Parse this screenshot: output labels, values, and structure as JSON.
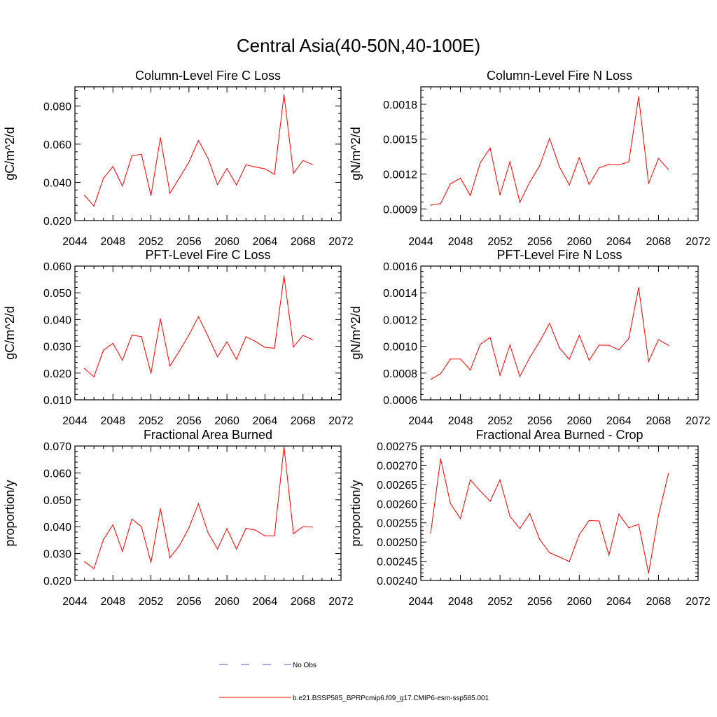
{
  "figure": {
    "title": "Central Asia(40-50N,40-100E)"
  },
  "chart_data": [
    {
      "type": "line",
      "title": "Column-Level Fire C Loss",
      "ylabel": "gC/m^2/d",
      "xlim": [
        2044,
        2072
      ],
      "ylim": [
        0.02,
        0.09
      ],
      "xticks": [
        2044,
        2048,
        2052,
        2056,
        2060,
        2064,
        2068,
        2072
      ],
      "xtick_labels": [
        "2044",
        "2048",
        "2052",
        "2056",
        "2060",
        "2064",
        "2068",
        "2072"
      ],
      "yticks": [
        0.02,
        0.04,
        0.06,
        0.08
      ],
      "ytick_labels": [
        "0.020",
        "0.040",
        "0.060",
        "0.080"
      ],
      "x": [
        2045,
        2046,
        2047,
        2048,
        2049,
        2050,
        2051,
        2052,
        2053,
        2054,
        2055,
        2056,
        2057,
        2058,
        2059,
        2060,
        2061,
        2062,
        2063,
        2064,
        2065,
        2066,
        2067,
        2068,
        2069
      ],
      "series": [
        {
          "color": "#ff0000",
          "values": [
            0.0332,
            0.0276,
            0.0421,
            0.0483,
            0.038,
            0.0539,
            0.0547,
            0.033,
            0.0634,
            0.0343,
            0.0424,
            0.0506,
            0.062,
            0.0526,
            0.0388,
            0.0473,
            0.0386,
            0.0492,
            0.048,
            0.0471,
            0.0442,
            0.086,
            0.0447,
            0.0514,
            0.0494
          ]
        }
      ]
    },
    {
      "type": "line",
      "title": "Column-Level Fire N Loss",
      "ylabel": "gN/m^2/d",
      "xlim": [
        2044,
        2072
      ],
      "ylim": [
        0.0008,
        0.00195
      ],
      "xticks": [
        2044,
        2048,
        2052,
        2056,
        2060,
        2064,
        2068,
        2072
      ],
      "xtick_labels": [
        "2044",
        "2048",
        "2052",
        "2056",
        "2060",
        "2064",
        "2068",
        "2072"
      ],
      "yticks": [
        0.0009,
        0.0012,
        0.0015,
        0.0018
      ],
      "ytick_labels": [
        "0.0009",
        "0.0012",
        "0.0015",
        "0.0018"
      ],
      "x": [
        2045,
        2046,
        2047,
        2048,
        2049,
        2050,
        2051,
        2052,
        2053,
        2054,
        2055,
        2056,
        2057,
        2058,
        2059,
        2060,
        2061,
        2062,
        2063,
        2064,
        2065,
        2066,
        2067,
        2068,
        2069
      ],
      "series": [
        {
          "color": "#ff0000",
          "values": [
            0.000932,
            0.000947,
            0.001117,
            0.001165,
            0.001015,
            0.001298,
            0.001423,
            0.00102,
            0.001305,
            0.000958,
            0.00113,
            0.001271,
            0.001506,
            0.001261,
            0.001106,
            0.001341,
            0.00111,
            0.001253,
            0.001283,
            0.001279,
            0.001304,
            0.001866,
            0.001118,
            0.001334,
            0.00124
          ]
        }
      ]
    },
    {
      "type": "line",
      "title": "PFT-Level Fire C Loss",
      "ylabel": "gC/m^2/d",
      "xlim": [
        2044,
        2072
      ],
      "ylim": [
        0.01,
        0.06
      ],
      "xticks": [
        2044,
        2048,
        2052,
        2056,
        2060,
        2064,
        2068,
        2072
      ],
      "xtick_labels": [
        "2044",
        "2048",
        "2052",
        "2056",
        "2060",
        "2064",
        "2068",
        "2072"
      ],
      "yticks": [
        0.01,
        0.02,
        0.03,
        0.04,
        0.05,
        0.06
      ],
      "ytick_labels": [
        "0.010",
        "0.020",
        "0.030",
        "0.040",
        "0.050",
        "0.060"
      ],
      "x": [
        2045,
        2046,
        2047,
        2048,
        2049,
        2050,
        2051,
        2052,
        2053,
        2054,
        2055,
        2056,
        2057,
        2058,
        2059,
        2060,
        2061,
        2062,
        2063,
        2064,
        2065,
        2066,
        2067,
        2068,
        2069
      ],
      "series": [
        {
          "color": "#ff0000",
          "values": [
            0.0217,
            0.0186,
            0.0285,
            0.0311,
            0.0248,
            0.0342,
            0.0336,
            0.0199,
            0.0403,
            0.0227,
            0.0283,
            0.0343,
            0.0411,
            0.0338,
            0.0261,
            0.0317,
            0.0251,
            0.0336,
            0.0318,
            0.0296,
            0.0293,
            0.0563,
            0.0297,
            0.0341,
            0.0325
          ]
        }
      ]
    },
    {
      "type": "line",
      "title": "PFT-Level Fire N Loss",
      "ylabel": "gN/m^2/d",
      "xlim": [
        2044,
        2072
      ],
      "ylim": [
        0.0006,
        0.0016
      ],
      "xticks": [
        2044,
        2048,
        2052,
        2056,
        2060,
        2064,
        2068,
        2072
      ],
      "xtick_labels": [
        "2044",
        "2048",
        "2052",
        "2056",
        "2060",
        "2064",
        "2068",
        "2072"
      ],
      "yticks": [
        0.0006,
        0.0008,
        0.001,
        0.0012,
        0.0014,
        0.0016
      ],
      "ytick_labels": [
        "0.0006",
        "0.0008",
        "0.0010",
        "0.0012",
        "0.0014",
        "0.0016"
      ],
      "x": [
        2045,
        2046,
        2047,
        2048,
        2049,
        2050,
        2051,
        2052,
        2053,
        2054,
        2055,
        2056,
        2057,
        2058,
        2059,
        2060,
        2061,
        2062,
        2063,
        2064,
        2065,
        2066,
        2067,
        2068,
        2069
      ],
      "series": [
        {
          "color": "#ff0000",
          "values": [
            0.000753,
            0.000796,
            0.000905,
            0.000905,
            0.000823,
            0.001015,
            0.001066,
            0.000783,
            0.001009,
            0.000775,
            0.000915,
            0.001036,
            0.001173,
            0.000987,
            0.000903,
            0.001082,
            0.000896,
            0.001009,
            0.001008,
            0.000974,
            0.001058,
            0.00144,
            0.000887,
            0.00105,
            0.001007
          ]
        }
      ]
    },
    {
      "type": "line",
      "title": "Fractional Area Burned",
      "ylabel": "proportion/y",
      "xlim": [
        2044,
        2072
      ],
      "ylim": [
        0.02,
        0.07
      ],
      "xticks": [
        2044,
        2048,
        2052,
        2056,
        2060,
        2064,
        2068,
        2072
      ],
      "xtick_labels": [
        "2044",
        "2048",
        "2052",
        "2056",
        "2060",
        "2064",
        "2068",
        "2072"
      ],
      "yticks": [
        0.02,
        0.03,
        0.04,
        0.05,
        0.06,
        0.07
      ],
      "ytick_labels": [
        "0.020",
        "0.030",
        "0.040",
        "0.050",
        "0.060",
        "0.070"
      ],
      "x": [
        2045,
        2046,
        2047,
        2048,
        2049,
        2050,
        2051,
        2052,
        2053,
        2054,
        2055,
        2056,
        2057,
        2058,
        2059,
        2060,
        2061,
        2062,
        2063,
        2064,
        2065,
        2066,
        2067,
        2068,
        2069
      ],
      "series": [
        {
          "color": "#ff0000",
          "values": [
            0.027,
            0.0244,
            0.0352,
            0.0407,
            0.0308,
            0.0428,
            0.04,
            0.0267,
            0.0467,
            0.0285,
            0.033,
            0.0396,
            0.0486,
            0.0378,
            0.0317,
            0.0393,
            0.0317,
            0.0394,
            0.0387,
            0.0366,
            0.0366,
            0.0698,
            0.0374,
            0.04,
            0.0399
          ]
        }
      ]
    },
    {
      "type": "line",
      "title": "Fractional Area Burned - Crop",
      "ylabel": "proportion/y",
      "xlim": [
        2044,
        2072
      ],
      "ylim": [
        0.0024,
        0.00275
      ],
      "xticks": [
        2044,
        2048,
        2052,
        2056,
        2060,
        2064,
        2068,
        2072
      ],
      "xtick_labels": [
        "2044",
        "2048",
        "2052",
        "2056",
        "2060",
        "2064",
        "2068",
        "2072"
      ],
      "yticks": [
        0.0024,
        0.00245,
        0.0025,
        0.00255,
        0.0026,
        0.00265,
        0.0027,
        0.00275
      ],
      "ytick_labels": [
        "0.00240",
        "0.00245",
        "0.00250",
        "0.00255",
        "0.00260",
        "0.00265",
        "0.00270",
        "0.00275"
      ],
      "x": [
        2045,
        2046,
        2047,
        2048,
        2049,
        2050,
        2051,
        2052,
        2053,
        2054,
        2055,
        2056,
        2057,
        2058,
        2059,
        2060,
        2061,
        2062,
        2063,
        2064,
        2065,
        2066,
        2067,
        2068,
        2069
      ],
      "series": [
        {
          "color": "#ff0000",
          "values": [
            0.002523,
            0.002717,
            0.0026,
            0.002561,
            0.002662,
            0.002633,
            0.002606,
            0.002662,
            0.002567,
            0.002535,
            0.002574,
            0.002507,
            0.002472,
            0.002461,
            0.002449,
            0.002519,
            0.002556,
            0.002555,
            0.002466,
            0.002573,
            0.002537,
            0.002546,
            0.002419,
            0.002569,
            0.002678
          ]
        }
      ]
    }
  ],
  "legend": {
    "items": [
      {
        "label": "No Obs",
        "color": "#5555bb",
        "style": "dashed"
      },
      {
        "label": "b.e21.BSSP585_BPRPcmip6.f09_g17.CMIP6-esm-ssp585.001",
        "color": "#ff0000",
        "style": "solid"
      }
    ]
  }
}
